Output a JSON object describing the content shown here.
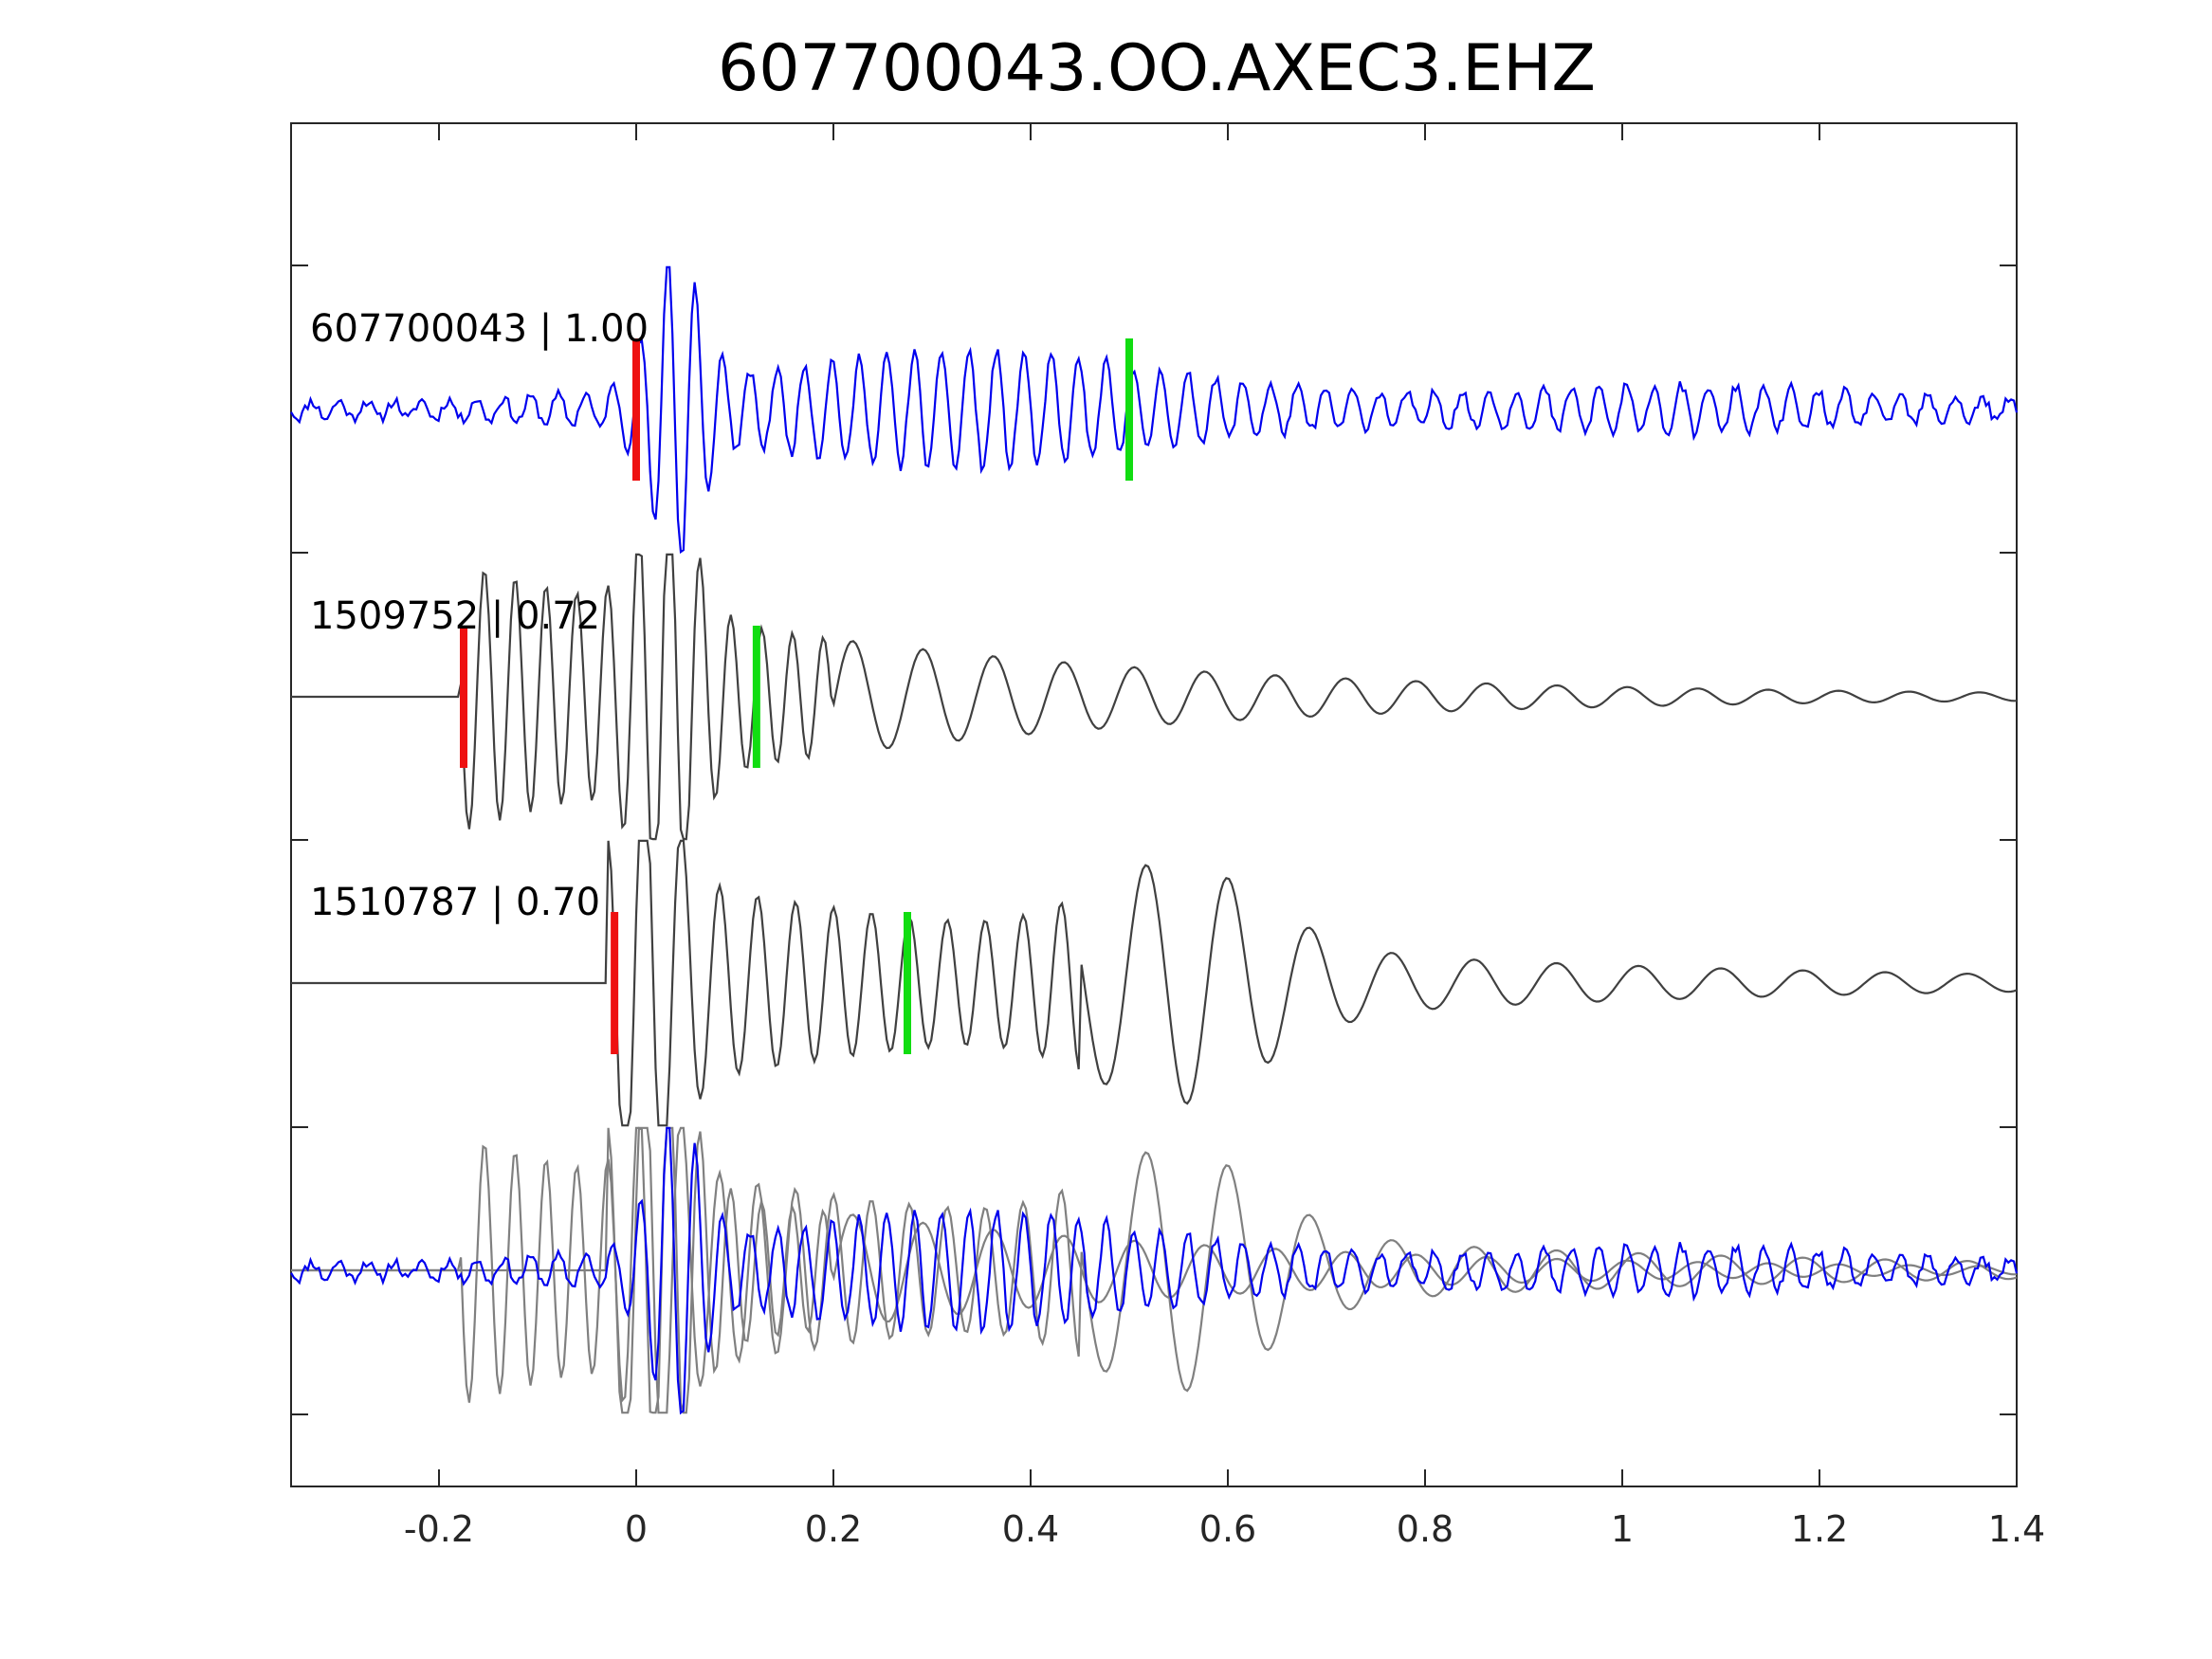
{
  "chart_data": {
    "type": "line",
    "title": "607700043.OO.AXEC3.EHZ",
    "xlabel": "",
    "ylabel": "",
    "xlim": [
      -0.35,
      1.4
    ],
    "x_ticks": [
      "-0.2",
      "0",
      "0.2",
      "0.4",
      "0.6",
      "0.8",
      "1",
      "1.2",
      "1.4"
    ],
    "y_ticks_labeled": false,
    "grid": false,
    "legend": "none",
    "colors": {
      "master": "#0000ee",
      "neighbor": "#404040",
      "overlay_neighbor": "#808080",
      "p_pick": "#ee1111",
      "s_pick": "#11dd11",
      "axis": "#262626"
    },
    "series": [
      {
        "name": "607700043 | 1.00",
        "row": 1,
        "p_pick": 0.0,
        "s_pick": 0.5
      },
      {
        "name": "1509752 | 0.72",
        "row": 2,
        "p_pick": -0.175,
        "s_pick": 0.122
      },
      {
        "name": "1510787 | 0.70",
        "row": 3,
        "p_pick": -0.022,
        "s_pick": 0.275
      }
    ]
  }
}
